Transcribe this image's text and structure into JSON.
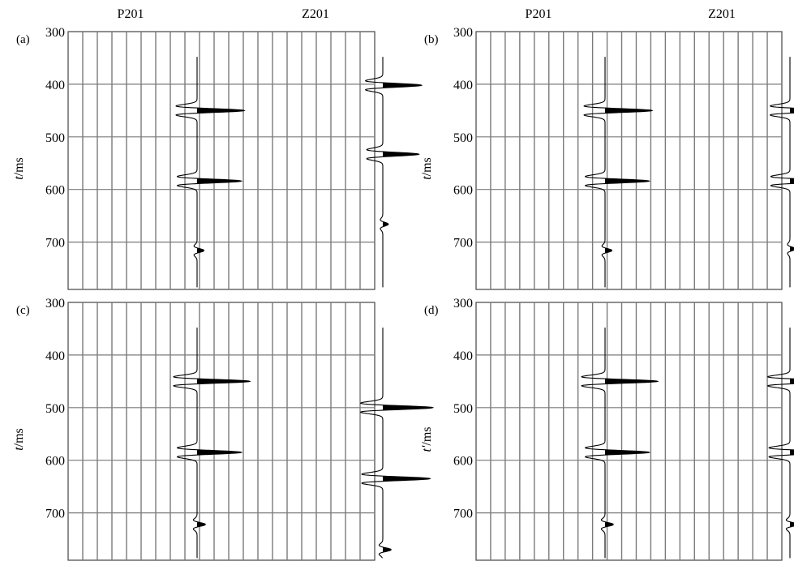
{
  "chart_data": [
    {
      "type": "line",
      "panel_label": "(a)",
      "ylabel": "t/ms",
      "ylim": [
        300,
        790
      ],
      "yticks": [
        "300",
        "400",
        "500",
        "600",
        "700"
      ],
      "series": [
        {
          "name": "P201",
          "wavelets": [
            {
              "t": 450,
              "amp": 1.7
            },
            {
              "t": 584,
              "amp": 1.6
            },
            {
              "t": 716,
              "amp": 0.25
            }
          ]
        },
        {
          "name": "Z201",
          "wavelets": [
            {
              "t": 402,
              "amp": 1.4
            },
            {
              "t": 533,
              "amp": 1.3
            },
            {
              "t": 666,
              "amp": 0.2
            }
          ]
        }
      ]
    },
    {
      "type": "line",
      "panel_label": "(b)",
      "ylabel": "t/ms",
      "ylim": [
        300,
        790
      ],
      "yticks": [
        "300",
        "400",
        "500",
        "600",
        "700"
      ],
      "series": [
        {
          "name": "P201",
          "wavelets": [
            {
              "t": 450,
              "amp": 1.7
            },
            {
              "t": 584,
              "amp": 1.6
            },
            {
              "t": 716,
              "amp": 0.25
            }
          ]
        },
        {
          "name": "Z201",
          "wavelets": [
            {
              "t": 450,
              "amp": 1.6
            },
            {
              "t": 584,
              "amp": 1.55
            },
            {
              "t": 713,
              "amp": 0.2
            }
          ]
        }
      ]
    },
    {
      "type": "line",
      "panel_label": "(c)",
      "ylabel": "t/ms",
      "ylim": [
        300,
        790
      ],
      "yticks": [
        "300",
        "400",
        "500",
        "600",
        "700"
      ],
      "series": [
        {
          "name": "P201",
          "wavelets": [
            {
              "t": 450,
              "amp": 1.9
            },
            {
              "t": 585,
              "amp": 1.6
            },
            {
              "t": 722,
              "amp": 0.3
            }
          ]
        },
        {
          "name": "Z201",
          "wavelets": [
            {
              "t": 500,
              "amp": 1.8
            },
            {
              "t": 635,
              "amp": 1.7
            },
            {
              "t": 770,
              "amp": 0.3
            }
          ]
        }
      ]
    },
    {
      "type": "line",
      "panel_label": "(d)",
      "ylabel": "t'/ms",
      "ylim": [
        300,
        790
      ],
      "yticks": [
        "300",
        "400",
        "500",
        "600",
        "700"
      ],
      "series": [
        {
          "name": "P201",
          "wavelets": [
            {
              "t": 450,
              "amp": 1.9
            },
            {
              "t": 585,
              "amp": 1.6
            },
            {
              "t": 722,
              "amp": 0.3
            }
          ]
        },
        {
          "name": "Z201",
          "wavelets": [
            {
              "t": 450,
              "amp": 1.8
            },
            {
              "t": 585,
              "amp": 1.7
            },
            {
              "t": 722,
              "amp": 0.3
            }
          ]
        }
      ]
    }
  ],
  "colors": {
    "grid": "#7a7a7a",
    "trace": "#000000",
    "background": "#ffffff"
  }
}
